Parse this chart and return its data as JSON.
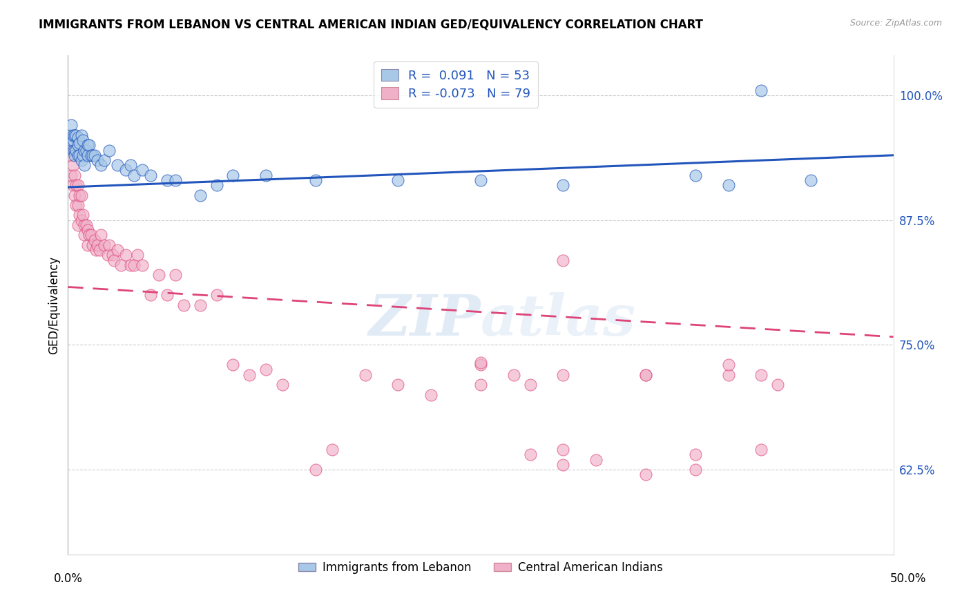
{
  "title": "IMMIGRANTS FROM LEBANON VS CENTRAL AMERICAN INDIAN GED/EQUIVALENCY CORRELATION CHART",
  "source": "Source: ZipAtlas.com",
  "ylabel": "GED/Equivalency",
  "legend_label1": "Immigrants from Lebanon",
  "legend_label2": "Central American Indians",
  "blue_color": "#a8c8e8",
  "pink_color": "#f0b0c8",
  "line_blue": "#2255bb",
  "line_pink": "#dd4477",
  "xmin": 0.0,
  "xmax": 0.5,
  "ymin": 0.54,
  "ymax": 1.04,
  "ytick_values": [
    0.625,
    0.75,
    0.875,
    1.0
  ],
  "ytick_labels": [
    "62.5%",
    "75.0%",
    "87.5%",
    "100.0%"
  ],
  "R_blue": 0.091,
  "N_blue": 53,
  "R_pink": -0.073,
  "N_pink": 79,
  "blue_line_x": [
    0.0,
    0.5
  ],
  "blue_line_y": [
    0.908,
    0.94
  ],
  "pink_line_x": [
    0.0,
    0.5
  ],
  "pink_line_y": [
    0.808,
    0.758
  ],
  "blue_x": [
    0.001,
    0.002,
    0.002,
    0.003,
    0.003,
    0.003,
    0.004,
    0.004,
    0.004,
    0.005,
    0.005,
    0.006,
    0.006,
    0.006,
    0.007,
    0.007,
    0.008,
    0.008,
    0.009,
    0.009,
    0.01,
    0.01,
    0.011,
    0.012,
    0.012,
    0.013,
    0.014,
    0.015,
    0.016,
    0.018,
    0.02,
    0.022,
    0.025,
    0.03,
    0.035,
    0.038,
    0.04,
    0.045,
    0.05,
    0.06,
    0.065,
    0.08,
    0.09,
    0.1,
    0.12,
    0.15,
    0.2,
    0.25,
    0.3,
    0.38,
    0.4,
    0.45,
    0.42
  ],
  "blue_y": [
    0.96,
    0.97,
    0.955,
    0.955,
    0.96,
    0.945,
    0.96,
    0.945,
    0.94,
    0.96,
    0.945,
    0.958,
    0.95,
    0.94,
    0.952,
    0.94,
    0.96,
    0.935,
    0.955,
    0.94,
    0.945,
    0.93,
    0.945,
    0.95,
    0.94,
    0.95,
    0.94,
    0.94,
    0.94,
    0.935,
    0.93,
    0.935,
    0.945,
    0.93,
    0.925,
    0.93,
    0.92,
    0.925,
    0.92,
    0.915,
    0.915,
    0.9,
    0.91,
    0.92,
    0.92,
    0.915,
    0.915,
    0.915,
    0.91,
    0.92,
    0.91,
    0.915,
    1.005
  ],
  "pink_x": [
    0.001,
    0.002,
    0.002,
    0.003,
    0.003,
    0.004,
    0.004,
    0.005,
    0.005,
    0.006,
    0.006,
    0.006,
    0.007,
    0.007,
    0.008,
    0.008,
    0.009,
    0.01,
    0.01,
    0.011,
    0.012,
    0.012,
    0.013,
    0.014,
    0.015,
    0.016,
    0.017,
    0.018,
    0.019,
    0.02,
    0.022,
    0.024,
    0.025,
    0.027,
    0.028,
    0.03,
    0.032,
    0.035,
    0.038,
    0.04,
    0.042,
    0.045,
    0.05,
    0.055,
    0.06,
    0.065,
    0.07,
    0.08,
    0.09,
    0.1,
    0.11,
    0.12,
    0.13,
    0.15,
    0.16,
    0.18,
    0.2,
    0.22,
    0.25,
    0.27,
    0.3,
    0.32,
    0.35,
    0.38,
    0.4,
    0.25,
    0.28,
    0.3,
    0.35,
    0.38,
    0.42,
    0.43,
    0.3,
    0.35,
    0.25,
    0.4,
    0.42,
    0.28,
    0.3
  ],
  "pink_y": [
    0.95,
    0.94,
    0.92,
    0.93,
    0.91,
    0.92,
    0.9,
    0.91,
    0.89,
    0.91,
    0.89,
    0.87,
    0.9,
    0.88,
    0.9,
    0.875,
    0.88,
    0.87,
    0.86,
    0.87,
    0.865,
    0.85,
    0.86,
    0.86,
    0.85,
    0.855,
    0.845,
    0.85,
    0.845,
    0.86,
    0.85,
    0.84,
    0.85,
    0.84,
    0.835,
    0.845,
    0.83,
    0.84,
    0.83,
    0.83,
    0.84,
    0.83,
    0.8,
    0.82,
    0.8,
    0.82,
    0.79,
    0.79,
    0.8,
    0.73,
    0.72,
    0.725,
    0.71,
    0.625,
    0.645,
    0.72,
    0.71,
    0.7,
    0.73,
    0.72,
    0.645,
    0.635,
    0.62,
    0.625,
    0.72,
    0.732,
    0.64,
    0.72,
    0.72,
    0.64,
    0.72,
    0.71,
    0.63,
    0.72,
    0.71,
    0.73,
    0.645,
    0.71,
    0.835
  ]
}
